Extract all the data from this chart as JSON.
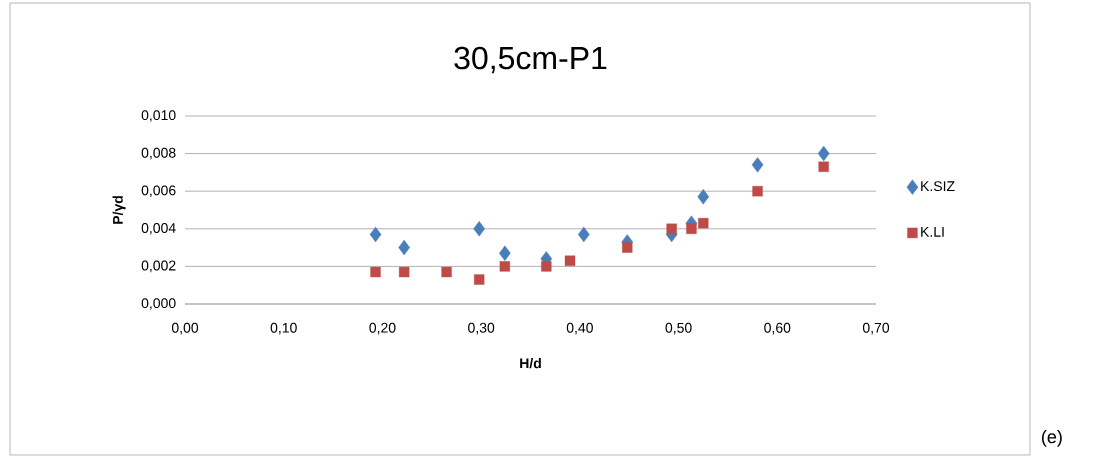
{
  "chart_data": {
    "type": "scatter",
    "title": "30,5cm-P1",
    "xlabel": "H/d",
    "ylabel": "P/γd",
    "annotations": [
      "(e)"
    ],
    "xlim": [
      0,
      0.7
    ],
    "ylim": [
      0,
      0.01
    ],
    "xticks": [
      {
        "value": 0,
        "label": "0,00"
      },
      {
        "value": 0.1,
        "label": "0,10"
      },
      {
        "value": 0.2,
        "label": "0,20"
      },
      {
        "value": 0.3,
        "label": "0,30"
      },
      {
        "value": 0.4,
        "label": "0,40"
      },
      {
        "value": 0.5,
        "label": "0,50"
      },
      {
        "value": 0.6,
        "label": "0,60"
      },
      {
        "value": 0.7,
        "label": "0,70"
      }
    ],
    "yticks": [
      {
        "value": 0,
        "label": "0,000"
      },
      {
        "value": 0.002,
        "label": "0,002"
      },
      {
        "value": 0.004,
        "label": "0,004"
      },
      {
        "value": 0.006,
        "label": "0,006"
      },
      {
        "value": 0.008,
        "label": "0,008"
      },
      {
        "value": 0.01,
        "label": "0,010"
      }
    ],
    "grid": "y",
    "legend": "right",
    "series": [
      {
        "name": "K.SIZ",
        "color": "#4a7ebb",
        "marker": "diamond",
        "x": [
          0.193,
          0.222,
          0.298,
          0.324,
          0.366,
          0.404,
          0.448,
          0.493,
          0.513,
          0.525,
          0.58,
          0.647
        ],
        "values": [
          0.0037,
          0.003,
          0.004,
          0.0027,
          0.0024,
          0.0037,
          0.0033,
          0.0037,
          0.0043,
          0.0057,
          0.0074,
          0.008
        ]
      },
      {
        "name": "K.LI",
        "color": "#be4b48",
        "marker": "square",
        "x": [
          0.193,
          0.222,
          0.265,
          0.298,
          0.324,
          0.366,
          0.39,
          0.448,
          0.493,
          0.513,
          0.525,
          0.58,
          0.647
        ],
        "values": [
          0.0017,
          0.0017,
          0.0017,
          0.0013,
          0.002,
          0.002,
          0.0023,
          0.003,
          0.004,
          0.004,
          0.0043,
          0.006,
          0.0073
        ]
      }
    ]
  }
}
